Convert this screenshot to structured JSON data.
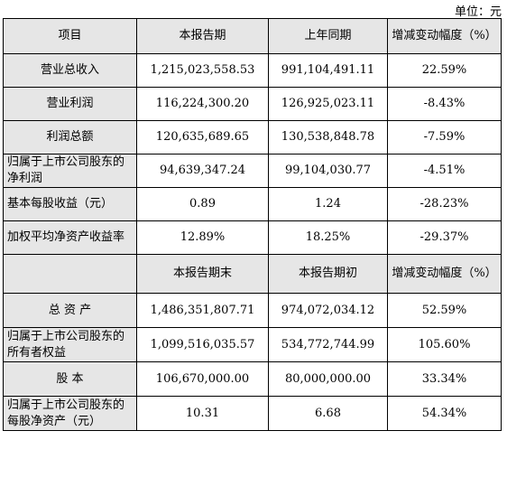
{
  "unit_label": "单位：元",
  "header1": {
    "item": "项目",
    "current": "本报告期",
    "prior": "上年同期",
    "change": "增减变动幅度（%）"
  },
  "rows1": [
    {
      "label": "营业总收入",
      "current": "1,215,023,558.53",
      "prior": "991,104,491.11",
      "change": "22.59%"
    },
    {
      "label": "营业利润",
      "current": "116,224,300.20",
      "prior": "126,925,023.11",
      "change": "-8.43%"
    },
    {
      "label": "利润总额",
      "current": "120,635,689.65",
      "prior": "130,538,848.78",
      "change": "-7.59%"
    },
    {
      "label": "归属于上市公司股东的净利润",
      "current": "94,639,347.24",
      "prior": "99,104,030.77",
      "change": "-4.51%"
    },
    {
      "label": "基本每股收益（元）",
      "current": "0.89",
      "prior": "1.24",
      "change": "-28.23%"
    },
    {
      "label": "加权平均净资产收益率",
      "current": "12.89%",
      "prior": "18.25%",
      "change": "-29.37%"
    }
  ],
  "header2": {
    "item": "",
    "current": "本报告期末",
    "prior": "本报告期初",
    "change": "增减变动幅度（%）"
  },
  "rows2": [
    {
      "label": "总 资 产",
      "current": "1,486,351,807.71",
      "prior": "974,072,034.12",
      "change": "52.59%"
    },
    {
      "label": "归属于上市公司股东的所有者权益",
      "current": "1,099,516,035.57",
      "prior": "534,772,744.99",
      "change": "105.60%"
    },
    {
      "label": "股 本",
      "current": "106,670,000.00",
      "prior": "80,000,000.00",
      "change": "33.34%"
    },
    {
      "label": "归属于上市公司股东的每股净资产（元）",
      "current": "10.31",
      "prior": "6.68",
      "change": "54.34%"
    }
  ]
}
